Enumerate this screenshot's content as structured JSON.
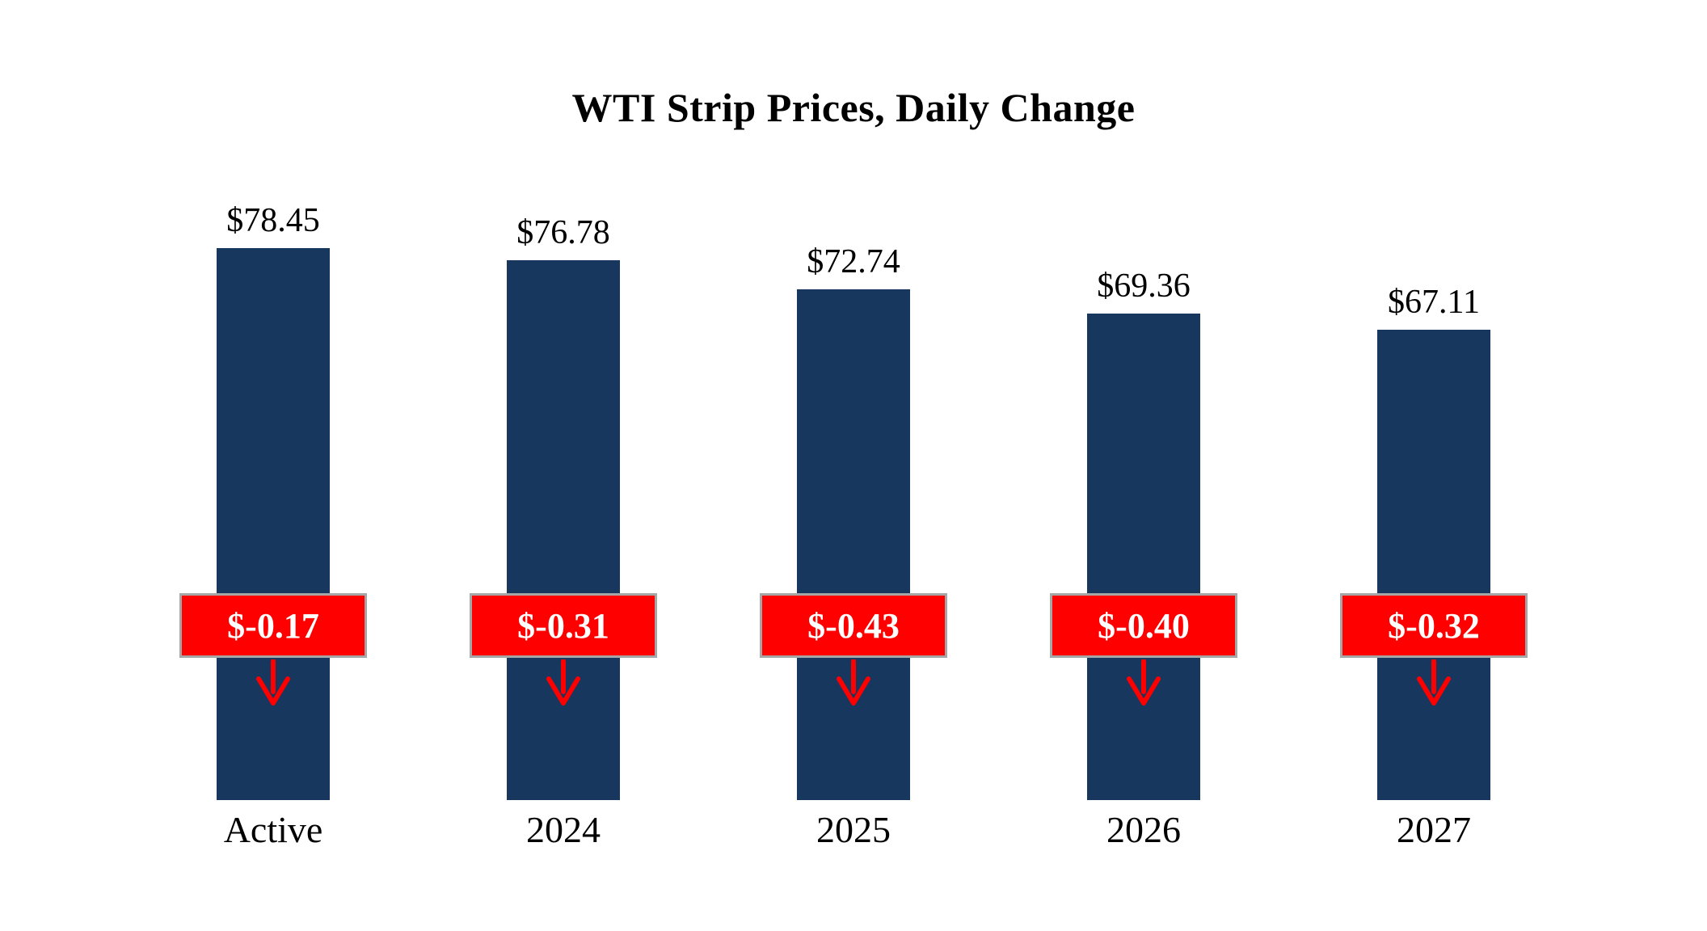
{
  "page": {
    "title": "WTI Strip Prices, Daily Change"
  },
  "chart_data": {
    "type": "bar",
    "title": "WTI Strip Prices, Daily Change",
    "categories": [
      "Active",
      "2024",
      "2025",
      "2026",
      "2027"
    ],
    "series": [
      {
        "name": "Strip Price",
        "values": [
          78.45,
          76.78,
          72.74,
          69.36,
          67.11
        ],
        "labels": [
          "$78.45",
          "$76.78",
          "$72.74",
          "$69.36",
          "$67.11"
        ]
      },
      {
        "name": "Daily Change",
        "values": [
          -0.17,
          -0.31,
          -0.43,
          -0.4,
          -0.32
        ],
        "labels": [
          "$-0.17",
          "$-0.31",
          "$-0.43",
          "$-0.40",
          "$-0.32"
        ]
      }
    ],
    "colors": {
      "bar": "#17375e",
      "change_box_fill": "#ff0000",
      "change_box_border": "#a6a6a6",
      "change_text": "#ffffff",
      "arrow": "#ff0000",
      "text": "#000000",
      "background": "#ffffff"
    },
    "layout": {
      "legend": "none",
      "grid": false,
      "value_axis_hidden": true,
      "bars_bottom_aligned": true,
      "change_markers": "red box with down arrow centered on each bar"
    }
  }
}
